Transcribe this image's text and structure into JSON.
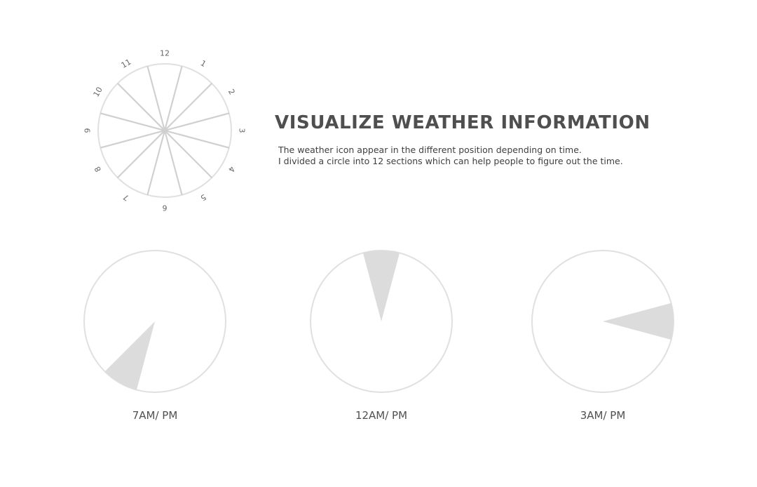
{
  "header": {
    "title": "VISUALIZE WEATHER INFORMATION",
    "description_lines": [
      "The weather icon appear in the different position depending on time.",
      "I divided a circle into 12 sections which can help people to figure out the time."
    ]
  },
  "clock_diagram": {
    "sections": 12,
    "hour_labels": [
      "12",
      "1",
      "2",
      "3",
      "4",
      "5",
      "6",
      "7",
      "8",
      "9",
      "10",
      "11"
    ]
  },
  "examples": [
    {
      "caption": "7AM/ PM",
      "hour": 7
    },
    {
      "caption": "12AM/ PM",
      "hour": 12
    },
    {
      "caption": "3AM/ PM",
      "hour": 3
    }
  ],
  "colors": {
    "heading": "#4f4f4f",
    "text": "#3f3f3f",
    "circle_stroke": "#e0e0e0",
    "wedge_fill": "#dcdcdc",
    "spoke": "#d0d0d0"
  }
}
